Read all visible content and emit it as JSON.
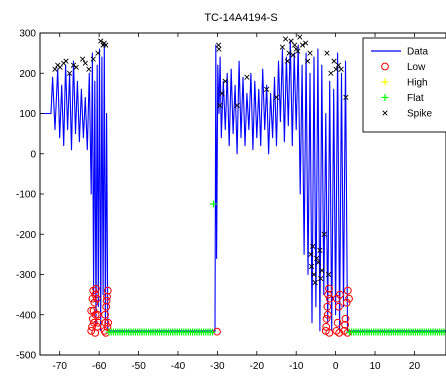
{
  "chart_data": {
    "type": "line",
    "title": "TC-14A4194-S",
    "xlabel": "",
    "ylabel": "",
    "xlim": [
      -75,
      28
    ],
    "ylim": [
      -500,
      300
    ],
    "xticks": [
      -70,
      -60,
      -50,
      -40,
      -30,
      -20,
      -10,
      0,
      10,
      20
    ],
    "yticks": [
      300,
      200,
      100,
      0,
      -100,
      -200,
      -300,
      -400,
      -500
    ],
    "grid": false,
    "legend_position": "top-right",
    "series": [
      {
        "name": "Data",
        "kind": "line",
        "color": "#0000ff",
        "x": [
          -75,
          -72.5,
          -72.2,
          -71.8,
          -71.2,
          -70.5,
          -70.0,
          -69.5,
          -69.0,
          -68.5,
          -68.0,
          -67.5,
          -67.0,
          -66.5,
          -66.0,
          -65.5,
          -65.0,
          -64.5,
          -64.0,
          -63.5,
          -63.0,
          -62.5,
          -62.0,
          -61.7,
          -61.4,
          -61.1,
          -60.8,
          -60.5,
          -60.2,
          -59.9,
          -59.6,
          -59.3,
          -59.0,
          -58.7,
          -58.4,
          -58.1,
          -57.8,
          -57.5,
          -57.3,
          -57.0,
          -56.5,
          -50,
          -40,
          -31.5,
          -31.0,
          -30.6,
          -30.4,
          -30.2,
          -29.9,
          -29.6,
          -29.3,
          -29.0,
          -28.5,
          -28.0,
          -27.5,
          -27.0,
          -26.5,
          -26.0,
          -25.5,
          -25.0,
          -24.5,
          -24.0,
          -23.5,
          -23.0,
          -22.5,
          -22.0,
          -21.5,
          -21.0,
          -20.5,
          -20.0,
          -19.5,
          -19.0,
          -18.5,
          -18.0,
          -17.5,
          -17.0,
          -16.5,
          -16.0,
          -15.5,
          -15.0,
          -14.5,
          -14.0,
          -13.5,
          -13.0,
          -12.5,
          -12.0,
          -11.5,
          -11.0,
          -10.5,
          -10.0,
          -9.5,
          -9.0,
          -8.5,
          -8.0,
          -7.5,
          -7.0,
          -6.5,
          -6.0,
          -5.5,
          -5.0,
          -4.5,
          -4.0,
          -3.5,
          -3.0,
          -2.5,
          -2.0,
          -1.5,
          -1.0,
          -0.5,
          0.0,
          0.5,
          1.0,
          1.5,
          2.0,
          2.5,
          3.0,
          3.5,
          4.0,
          5,
          10,
          20,
          28
        ],
        "y": [
          100,
          100,
          100,
          190,
          60,
          210,
          40,
          170,
          20,
          220,
          60,
          200,
          10,
          230,
          50,
          180,
          30,
          160,
          40,
          140,
          10,
          200,
          -100,
          250,
          -350,
          180,
          -420,
          220,
          -380,
          260,
          -440,
          240,
          -350,
          270,
          -420,
          100,
          -440,
          -440,
          -440,
          -440,
          -440,
          -440,
          -440,
          -440,
          -440,
          -440,
          270,
          -260,
          220,
          100,
          240,
          40,
          180,
          60,
          200,
          20,
          210,
          50,
          170,
          0,
          230,
          40,
          190,
          20,
          150,
          60,
          200,
          10,
          180,
          40,
          160,
          20,
          210,
          60,
          170,
          0,
          150,
          40,
          190,
          20,
          230,
          80,
          260,
          30,
          240,
          70,
          280,
          20,
          250,
          60,
          270,
          -100,
          220,
          -250,
          250,
          -300,
          200,
          -420,
          240,
          -380,
          260,
          -440,
          220,
          -350,
          100,
          -420,
          180,
          -440,
          160,
          -400,
          250,
          -440,
          200,
          -380,
          230,
          -440,
          -440,
          -440,
          -440,
          -440,
          -440,
          -440
        ]
      },
      {
        "name": "Low",
        "kind": "marker",
        "marker": "circle",
        "color": "#ff0000",
        "x": [
          -62.0,
          -61.8,
          -61.6,
          -61.4,
          -61.2,
          -61.0,
          -60.8,
          -60.6,
          -60.4,
          -60.2,
          -62.0,
          -61.5,
          -61.0,
          -60.5,
          -61.7,
          -61.3,
          -60.9,
          -58.6,
          -58.4,
          -58.2,
          -58.0,
          -57.8,
          -58.5,
          -58.1,
          -57.9,
          -58.3,
          -57.7,
          -30.1,
          -2.5,
          -2.3,
          -2.1,
          -1.9,
          -1.7,
          -1.5,
          -2.4,
          -2.0,
          -1.6,
          0.2,
          0.5,
          0.8,
          1.1,
          0.3,
          0.9,
          2.2,
          2.5,
          2.8,
          3.1,
          3.4,
          2.4,
          3.0
        ],
        "y": [
          -440,
          -430,
          -410,
          -390,
          -370,
          -350,
          -335,
          -360,
          -400,
          -420,
          -390,
          -340,
          -445,
          -430,
          -360,
          -420,
          -400,
          -440,
          -420,
          -380,
          -355,
          -340,
          -400,
          -365,
          -430,
          -445,
          -420,
          -442,
          -440,
          -410,
          -380,
          -350,
          -335,
          -360,
          -430,
          -400,
          -445,
          -440,
          -420,
          -380,
          -350,
          -360,
          -445,
          -440,
          -410,
          -370,
          -340,
          -360,
          -425,
          -445
        ]
      },
      {
        "name": "High",
        "kind": "marker",
        "marker": "plus",
        "color": "#ffff00",
        "x": [],
        "y": []
      },
      {
        "name": "Flat",
        "kind": "marker",
        "marker": "plus",
        "color": "#00ff00",
        "x": [
          -57.5,
          3.5,
          -31.0
        ],
        "x_end": [
          -31.0,
          28.0,
          -31.0
        ],
        "y": [
          -443,
          -443,
          -125
        ]
      },
      {
        "name": "Spike",
        "kind": "marker",
        "marker": "x",
        "color": "#000000",
        "x": [
          -71.2,
          -70.5,
          -69.9,
          -69.0,
          -68.4,
          -67.5,
          -66.5,
          -65.8,
          -64.2,
          -63.5,
          -62.6,
          -61.5,
          -60.3,
          -59.6,
          -59.0,
          -58.7,
          -58.3,
          -29.7,
          -29.6,
          -29.4,
          -28.8,
          -28.0,
          -25.0,
          -22.5,
          -17.5,
          -15.0,
          -13.5,
          -12.7,
          -12.2,
          -11.8,
          -11.3,
          -10.8,
          -10.4,
          -10.0,
          -9.6,
          -9.1,
          -8.4,
          -7.6,
          -7.1,
          -6.5,
          -6.3,
          -6.1,
          -5.8,
          -5.5,
          -5.2,
          -4.8,
          -4.4,
          -4.0,
          -3.8,
          -3.5,
          -2.9,
          -2.2,
          -1.8,
          -1.2,
          -0.4,
          0.1,
          0.7,
          1.4,
          2.6
        ],
        "y": [
          210,
          220,
          215,
          225,
          230,
          200,
          220,
          215,
          235,
          225,
          210,
          235,
          250,
          280,
          270,
          275,
          270,
          270,
          260,
          120,
          150,
          180,
          120,
          190,
          160,
          140,
          265,
          285,
          230,
          250,
          280,
          245,
          270,
          260,
          255,
          290,
          270,
          275,
          230,
          250,
          -250,
          -280,
          -230,
          -300,
          -320,
          -260,
          -270,
          -240,
          -310,
          -290,
          -200,
          250,
          -300,
          200,
          230,
          210,
          220,
          210,
          140
        ]
      }
    ]
  }
}
